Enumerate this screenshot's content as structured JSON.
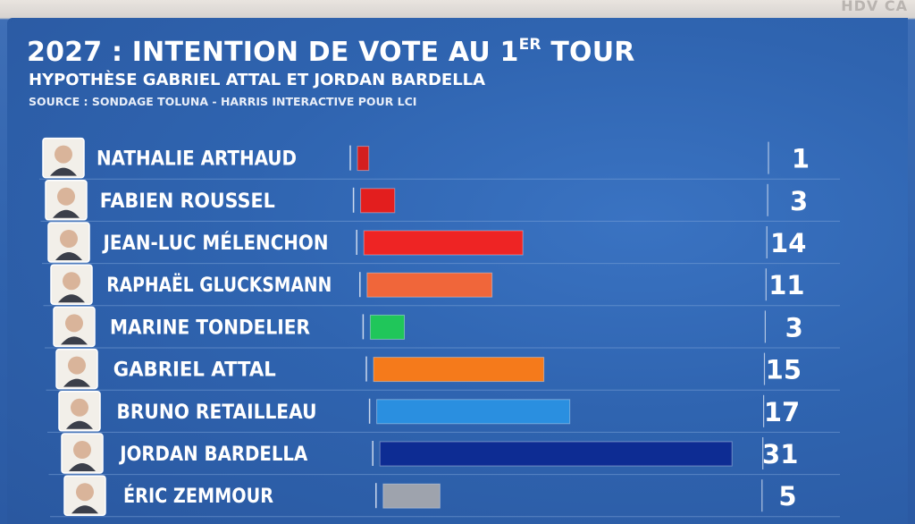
{
  "header": {
    "title_main": "2027 : INTENTION DE VOTE AU 1",
    "title_sup": "ER",
    "title_end": " TOUR",
    "subtitle": "HYPOTHÈSE GABRIEL ATTAL ET JORDAN BARDELLA",
    "source": "SOURCE : SONDAGE TOLUNA - HARRIS INTERACTIVE POUR LCI"
  },
  "corner_text": "HDV CA",
  "colors": {
    "arthaud": "#d41f1f",
    "roussel": "#e31e1e",
    "melenchon": "#ee2424",
    "glucksmann": "#f0663a",
    "tondelier": "#20c65a",
    "attal": "#f57a1b",
    "retailleau": "#2a8fe0",
    "bardella": "#0d2c93",
    "zemmour": "#9ea3ad"
  },
  "chart_data": {
    "type": "bar",
    "orientation": "horizontal",
    "categories": [
      "NATHALIE ARTHAUD",
      "FABIEN ROUSSEL",
      "JEAN-LUC MÉLENCHON",
      "RAPHAËL GLUCKSMANN",
      "MARINE TONDELIER",
      "GABRIEL ATTAL",
      "BRUNO RETAILLEAU",
      "JORDAN BARDELLA",
      "ÉRIC ZEMMOUR"
    ],
    "values": [
      1,
      3,
      14,
      11,
      3,
      15,
      17,
      31,
      5
    ],
    "value_labels": [
      "1",
      "3",
      "14",
      "11",
      "3",
      "15",
      "17",
      "31",
      "5"
    ],
    "bar_colors": [
      "#d41f1f",
      "#e31e1e",
      "#ee2424",
      "#f0663a",
      "#20c65a",
      "#f57a1b",
      "#2a8fe0",
      "#0d2c93",
      "#9ea3ad"
    ],
    "title": "2027 : INTENTION DE VOTE AU 1ER TOUR",
    "xlabel": "",
    "ylabel": "",
    "xlim": [
      0,
      31
    ],
    "grid": false,
    "legend": "none"
  }
}
